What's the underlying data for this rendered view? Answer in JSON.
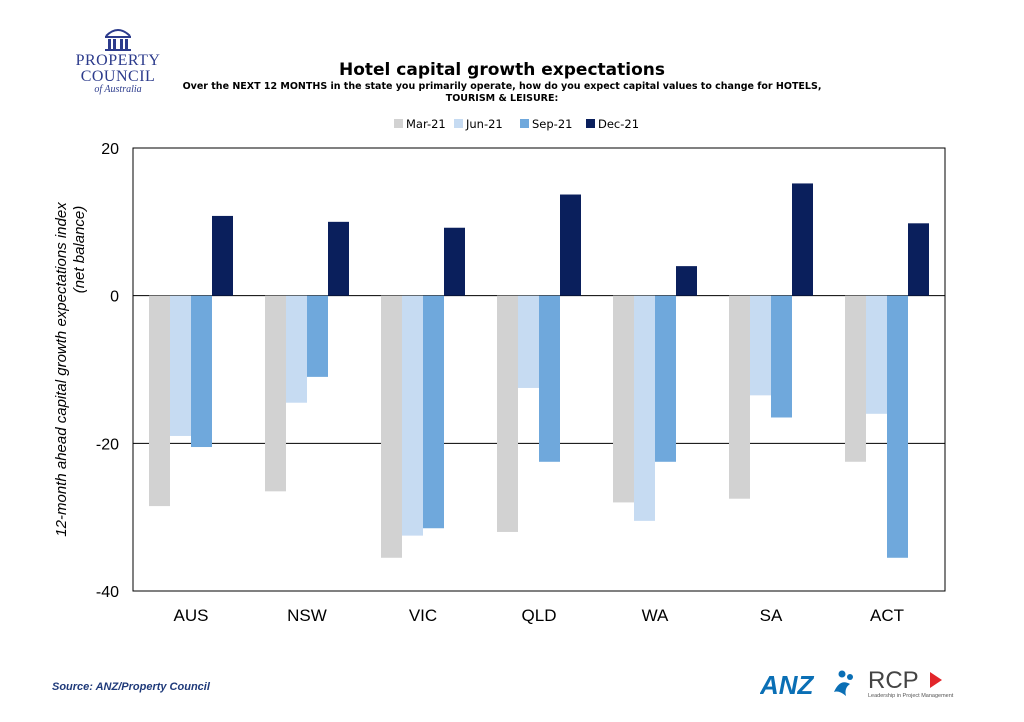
{
  "header": {
    "logo_text_1": "PROPERTY",
    "logo_text_2": "COUNCIL",
    "logo_text_3": "of Australia"
  },
  "footer": {
    "source": "Source: ANZ/Property Council",
    "logo_anz": "ANZ",
    "logo_rcp": "RCP",
    "logo_rcp_tagline": "Leadership in Project Management"
  },
  "colors": {
    "Mar-21": "#d2d2d2",
    "Jun-21": "#c6dbf2",
    "Sep-21": "#6fa8dc",
    "Dec-21": "#0a1f5c",
    "brand_blue": "#2c3b8c"
  },
  "chart_data": {
    "type": "bar",
    "title": "Hotel capital growth expectations",
    "subtitle": "Over the NEXT 12 MONTHS in the state you primarily operate, how do you expect capital values to change for HOTELS, TOURISM & LEISURE:",
    "ylabel_line1": "12-month ahead capital growth expectations index",
    "ylabel_line2": "(net balance)",
    "xlabel": "",
    "ylim": [
      -40,
      20
    ],
    "yticks": [
      20,
      0,
      -20,
      -40
    ],
    "grid": true,
    "legend_position": "top-center",
    "categories": [
      "AUS",
      "NSW",
      "VIC",
      "QLD",
      "WA",
      "SA",
      "ACT"
    ],
    "series": [
      {
        "name": "Mar-21",
        "values": [
          -28.5,
          -26.5,
          -35.5,
          -32,
          -28,
          -27.5,
          -22.5
        ]
      },
      {
        "name": "Jun-21",
        "values": [
          -19,
          -14.5,
          -32.5,
          -12.5,
          -30.5,
          -13.5,
          -16
        ]
      },
      {
        "name": "Sep-21",
        "values": [
          -20.5,
          -11,
          -31.5,
          -22.5,
          -22.5,
          -16.5,
          -35.5
        ]
      },
      {
        "name": "Dec-21",
        "values": [
          10.8,
          10,
          9.2,
          13.7,
          4,
          15.2,
          9.8
        ]
      }
    ]
  }
}
